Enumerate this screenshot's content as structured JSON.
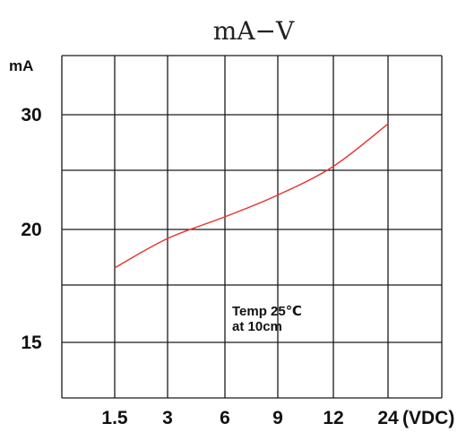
{
  "chart_data": {
    "type": "line",
    "title": "mA−V",
    "ylabel": "mA",
    "xlabel": "",
    "categories": [
      "1.5",
      "3",
      "6",
      "9",
      "12",
      "24"
    ],
    "x_unit_label": "(VDC)",
    "y_ticks": [
      "30",
      "20",
      "15"
    ],
    "ylim": [
      12,
      34
    ],
    "grid": true,
    "series": [
      {
        "color": "#e8302c",
        "x": [
          "1.5",
          "3",
          "6",
          "9",
          "12",
          "24"
        ],
        "values": [
          18.3,
          19.6,
          21.1,
          23.0,
          25.5,
          29.2
        ]
      }
    ],
    "annotation": [
      "Temp 25℃",
      "at 10cm"
    ]
  }
}
